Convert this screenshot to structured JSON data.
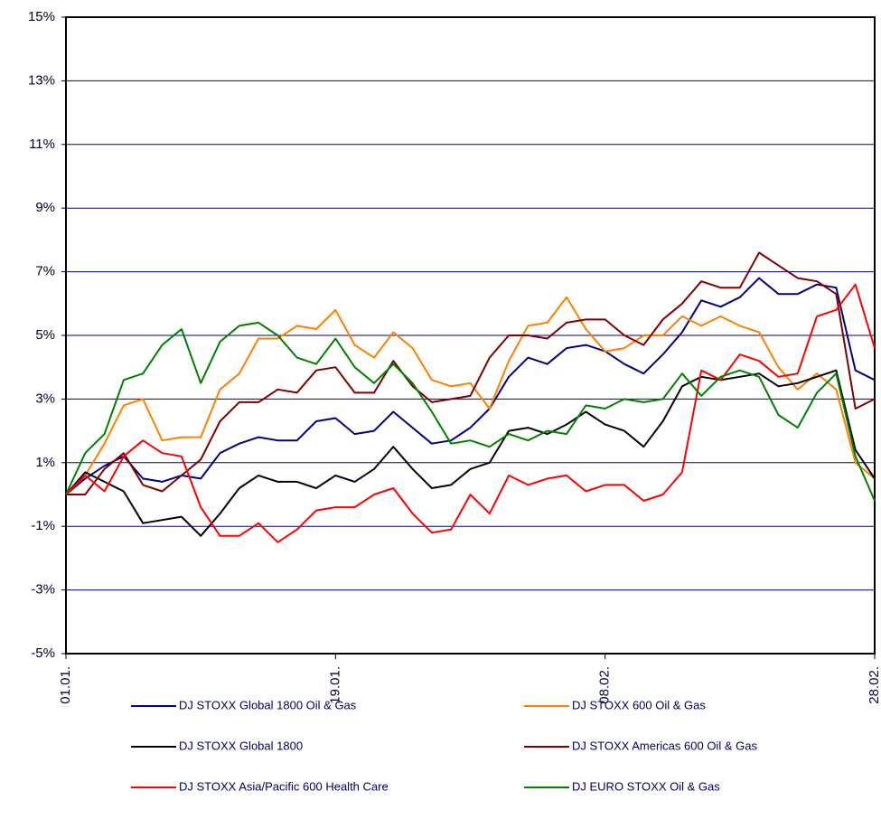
{
  "chart_data": {
    "type": "line",
    "categories": [
      "01.01.",
      null,
      null,
      null,
      null,
      null,
      null,
      null,
      null,
      null,
      null,
      null,
      null,
      null,
      "19.01.",
      null,
      null,
      null,
      null,
      null,
      null,
      null,
      null,
      null,
      null,
      null,
      null,
      null,
      "08.02.",
      null,
      null,
      null,
      null,
      null,
      null,
      null,
      null,
      null,
      null,
      null,
      null,
      null,
      "28.02."
    ],
    "series": [
      {
        "name": "DJ STOXX Global 1800 Oil & Gas",
        "color": "#000080",
        "values": [
          0,
          0.5,
          0.9,
          1.2,
          0.5,
          0.4,
          0.6,
          0.5,
          1.3,
          1.6,
          1.8,
          1.7,
          1.7,
          2.3,
          2.4,
          1.9,
          2.0,
          2.6,
          2.1,
          1.6,
          1.7,
          2.1,
          2.7,
          3.7,
          4.3,
          4.1,
          4.6,
          4.7,
          4.5,
          4.1,
          3.8,
          4.4,
          5.1,
          6.1,
          5.9,
          6.2,
          6.8,
          6.3,
          6.3,
          6.6,
          6.5,
          3.9,
          3.6
        ]
      },
      {
        "name": "DJ STOXX 600 Oil & Gas",
        "color": "#ff8000",
        "values": [
          0,
          0.6,
          1.6,
          2.8,
          3.0,
          1.7,
          1.8,
          1.8,
          3.3,
          3.8,
          4.9,
          4.9,
          5.3,
          5.2,
          5.8,
          4.7,
          4.3,
          5.1,
          4.6,
          3.6,
          3.4,
          3.5,
          2.7,
          4.2,
          5.3,
          5.4,
          6.2,
          5.2,
          4.5,
          4.6,
          5.0,
          5.0,
          5.6,
          5.3,
          5.6,
          5.3,
          5.1,
          4.0,
          3.3,
          3.8,
          3.3,
          1.0,
          0.5
        ]
      },
      {
        "name": "DJ STOXX Global 1800",
        "color": "#000000",
        "values": [
          0,
          0.7,
          0.4,
          0.1,
          -0.9,
          -0.8,
          -0.7,
          -1.3,
          -0.6,
          0.2,
          0.6,
          0.4,
          0.4,
          0.2,
          0.6,
          0.4,
          0.8,
          1.5,
          0.8,
          0.2,
          0.3,
          0.8,
          1.0,
          2.0,
          2.1,
          1.9,
          2.2,
          2.6,
          2.2,
          2.0,
          1.5,
          2.3,
          3.4,
          3.7,
          3.6,
          3.7,
          3.8,
          3.4,
          3.5,
          3.7,
          3.9,
          1.4,
          0.5
        ]
      },
      {
        "name": "DJ STOXX Americas 600 Oil & Gas",
        "color": "#800000",
        "values": [
          0,
          0,
          0.8,
          1.3,
          0.3,
          0.1,
          0.6,
          1.1,
          2.3,
          2.9,
          2.9,
          3.3,
          3.2,
          3.9,
          4.0,
          3.2,
          3.2,
          4.2,
          3.4,
          2.9,
          3.0,
          3.1,
          4.3,
          5.0,
          5.0,
          4.9,
          5.4,
          5.5,
          5.5,
          5.0,
          4.7,
          5.5,
          6.0,
          6.7,
          6.5,
          6.5,
          7.6,
          7.2,
          6.8,
          6.7,
          6.3,
          2.7,
          3.0
        ]
      },
      {
        "name": "DJ STOXX Asia/Pacific 600 Health Care",
        "color": "#ff0000",
        "values": [
          0,
          0.6,
          0.1,
          1.2,
          1.7,
          1.3,
          1.2,
          -0.4,
          -1.3,
          -1.3,
          -0.9,
          -1.5,
          -1.1,
          -0.5,
          -0.4,
          -0.4,
          0.0,
          0.2,
          -0.6,
          -1.2,
          -1.1,
          0.0,
          -0.6,
          0.6,
          0.3,
          0.5,
          0.6,
          0.1,
          0.3,
          0.3,
          -0.2,
          0.0,
          0.7,
          3.9,
          3.6,
          4.4,
          4.2,
          3.7,
          3.8,
          5.6,
          5.8,
          6.6,
          4.6
        ]
      },
      {
        "name": "DJ EURO STOXX Oil & Gas",
        "color": "#008000",
        "values": [
          0,
          1.3,
          1.9,
          3.6,
          3.8,
          4.7,
          5.2,
          3.5,
          4.8,
          5.3,
          5.4,
          5.0,
          4.3,
          4.1,
          4.9,
          4.0,
          3.5,
          4.1,
          3.5,
          2.6,
          1.6,
          1.7,
          1.5,
          1.9,
          1.7,
          2.0,
          1.9,
          2.8,
          2.7,
          3.0,
          2.9,
          3.0,
          3.8,
          3.1,
          3.7,
          3.9,
          3.7,
          2.5,
          2.1,
          3.2,
          3.8,
          1.2,
          -0.2
        ]
      }
    ],
    "ylim": [
      -5,
      15
    ],
    "yticks": [
      {
        "value": -5,
        "label": "-5%"
      },
      {
        "value": -3,
        "label": "-3%"
      },
      {
        "value": -1,
        "label": "-1%"
      },
      {
        "value": 1,
        "label": "1%"
      },
      {
        "value": 3,
        "label": "3%"
      },
      {
        "value": 5,
        "label": "5%"
      },
      {
        "value": 7,
        "label": "7%"
      },
      {
        "value": 9,
        "label": "9%"
      },
      {
        "value": 11,
        "label": "11%"
      },
      {
        "value": 13,
        "label": "13%"
      },
      {
        "value": 15,
        "label": "15%"
      }
    ],
    "grid": true,
    "grid_color": "#000080",
    "legend": "bottom"
  }
}
